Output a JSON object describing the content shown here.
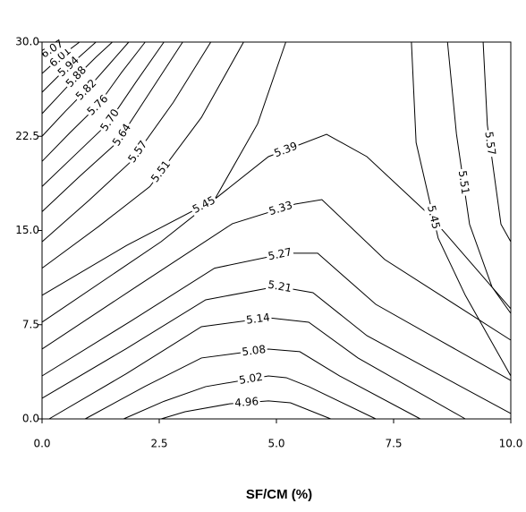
{
  "chart_data": {
    "type": "contour",
    "xlabel": "SF/CM (%)",
    "xlim": [
      0,
      10
    ],
    "ylim": [
      0,
      30
    ],
    "xticks": [
      {
        "value": 0,
        "label": "0.0"
      },
      {
        "value": 2.5,
        "label": "2.5"
      },
      {
        "value": 5,
        "label": "5.0"
      },
      {
        "value": 7.5,
        "label": "7.5"
      },
      {
        "value": 10,
        "label": "10.0"
      }
    ],
    "yticks": [
      {
        "value": 0,
        "label": "0.0"
      },
      {
        "value": 7.5,
        "label": "7.5"
      },
      {
        "value": 15,
        "label": "15.0"
      },
      {
        "value": 22.5,
        "label": "22.5"
      },
      {
        "value": 30,
        "label": "30.0"
      }
    ],
    "color": "#000000",
    "contours": [
      {
        "level": 4.96,
        "x": [
          2.54,
          3.05,
          4.0,
          4.83,
          5.3,
          6.16
        ],
        "y": [
          0,
          0.57,
          1.2,
          1.43,
          1.28,
          0
        ]
      },
      {
        "level": 5.02,
        "x": [
          1.74,
          2.6,
          3.49,
          4.83,
          5.21,
          5.69,
          7.12
        ],
        "y": [
          0,
          1.4,
          2.57,
          3.42,
          3.28,
          2.57,
          0
        ]
      },
      {
        "level": 5.08,
        "x": [
          0.92,
          2.2,
          3.4,
          4.83,
          5.5,
          6.35,
          8.07
        ],
        "y": [
          0,
          2.6,
          4.85,
          5.56,
          5.35,
          3.42,
          0
        ]
      },
      {
        "level": 5.14,
        "x": [
          0.15,
          1.8,
          3.4,
          4.83,
          5.69,
          6.74,
          9.03
        ],
        "y": [
          0,
          3.6,
          7.34,
          8.05,
          7.7,
          4.85,
          0
        ]
      },
      {
        "level": 5.21,
        "x": [
          0,
          1.8,
          3.49,
          5.02,
          5.78,
          6.93,
          10
        ],
        "y": [
          1.64,
          5.6,
          9.48,
          10.55,
          10.05,
          6.63,
          0.43
        ]
      },
      {
        "level": 5.27,
        "x": [
          0,
          1.9,
          3.68,
          5.21,
          5.88,
          7.12,
          10
        ],
        "y": [
          3.42,
          7.8,
          12,
          13.19,
          13.19,
          9.12,
          3.06
        ]
      },
      {
        "level": 5.33,
        "x": [
          0,
          2.0,
          4.06,
          5.4,
          5.97,
          7.31,
          10
        ],
        "y": [
          5.56,
          10.5,
          15.54,
          17.1,
          17.46,
          12.69,
          6.27
        ]
      },
      {
        "level": 5.39,
        "x": [
          0,
          2.54,
          4.83,
          6.07,
          6.93,
          8.26,
          10
        ],
        "y": [
          7.7,
          14.11,
          20.88,
          22.66,
          20.88,
          16.25,
          8.77
        ]
      },
      {
        "level": 5.45,
        "x": [
          0,
          1.8,
          3.68,
          4.6,
          5.2
        ],
        "y": [
          9.84,
          13.8,
          17.46,
          23.5,
          30
        ]
      },
      {
        "level": 5.45,
        "x": [
          7.88,
          7.98,
          8.45,
          9.03,
          10
        ],
        "y": [
          30,
          22,
          14.4,
          9.84,
          3.42
        ]
      },
      {
        "level": 5.51,
        "x": [
          0,
          1.2,
          2.3,
          3.4,
          4.3
        ],
        "y": [
          12,
          15.3,
          18.5,
          24,
          30
        ]
      },
      {
        "level": 5.51,
        "x": [
          8.65,
          8.84,
          9.12,
          9.6,
          10
        ],
        "y": [
          30,
          22.7,
          15.5,
          10.5,
          8.4
        ]
      },
      {
        "level": 5.57,
        "x": [
          0,
          1.0,
          1.9,
          2.8,
          3.6
        ],
        "y": [
          14.1,
          17.4,
          20.5,
          25.2,
          30
        ]
      },
      {
        "level": 5.57,
        "x": [
          9.41,
          9.5,
          9.79,
          10
        ],
        "y": [
          30,
          23.4,
          15.5,
          14.1
        ]
      },
      {
        "level": 5.64,
        "x": [
          0,
          0.8,
          1.6,
          2.3,
          3.0
        ],
        "y": [
          16.5,
          19.3,
          22,
          26,
          30
        ]
      },
      {
        "level": {
          "value": 5.7,
          "label": "5.70"
        },
        "x": [
          0,
          0.7,
          1.4,
          2.0,
          2.6
        ],
        "y": [
          18.5,
          21,
          23.5,
          26.8,
          30
        ]
      },
      {
        "level": 5.76,
        "x": [
          0,
          0.6,
          1.2,
          1.7,
          2.2
        ],
        "y": [
          20.5,
          22.8,
          25,
          27.6,
          30
        ]
      },
      {
        "level": 5.82,
        "x": [
          0,
          0.5,
          1.0,
          1.45,
          1.85
        ],
        "y": [
          22.5,
          24.5,
          26.4,
          28.3,
          30
        ]
      },
      {
        "level": 5.88,
        "x": [
          0,
          0.4,
          0.8,
          1.15,
          1.5
        ],
        "y": [
          24.3,
          25.9,
          27.5,
          28.8,
          30
        ]
      },
      {
        "level": 5.94,
        "x": [
          0,
          0.35,
          0.7,
          1.15
        ],
        "y": [
          26,
          27.3,
          28.5,
          30
        ]
      },
      {
        "level": 6.01,
        "x": [
          0,
          0.3,
          0.55,
          0.8
        ],
        "y": [
          27.5,
          28.5,
          29.3,
          30
        ]
      },
      {
        "level": 6.07,
        "x": [
          0,
          0.2,
          0.45
        ],
        "y": [
          28.8,
          29.4,
          30
        ]
      }
    ]
  }
}
